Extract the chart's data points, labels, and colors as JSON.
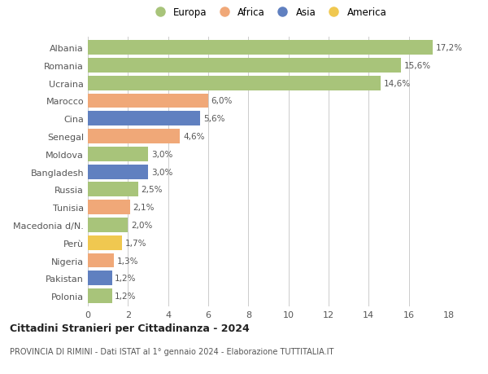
{
  "categories": [
    "Albania",
    "Romania",
    "Ucraina",
    "Marocco",
    "Cina",
    "Senegal",
    "Moldova",
    "Bangladesh",
    "Russia",
    "Tunisia",
    "Macedonia d/N.",
    "Perù",
    "Nigeria",
    "Pakistan",
    "Polonia"
  ],
  "values": [
    17.2,
    15.6,
    14.6,
    6.0,
    5.6,
    4.6,
    3.0,
    3.0,
    2.5,
    2.1,
    2.0,
    1.7,
    1.3,
    1.2,
    1.2
  ],
  "continents": [
    "Europa",
    "Europa",
    "Europa",
    "Africa",
    "Asia",
    "Africa",
    "Europa",
    "Asia",
    "Europa",
    "Africa",
    "Europa",
    "America",
    "Africa",
    "Asia",
    "Europa"
  ],
  "colors": {
    "Europa": "#a8c47a",
    "Africa": "#f0a878",
    "Asia": "#6080c0",
    "America": "#f0c850"
  },
  "legend_order": [
    "Europa",
    "Africa",
    "Asia",
    "America"
  ],
  "xlim": [
    0,
    18
  ],
  "xticks": [
    0,
    2,
    4,
    6,
    8,
    10,
    12,
    14,
    16,
    18
  ],
  "title": "Cittadini Stranieri per Cittadinanza - 2024",
  "subtitle": "PROVINCIA DI RIMINI - Dati ISTAT al 1° gennaio 2024 - Elaborazione TUTTITALIA.IT",
  "background_color": "#ffffff",
  "grid_color": "#cccccc",
  "bar_height": 0.82
}
